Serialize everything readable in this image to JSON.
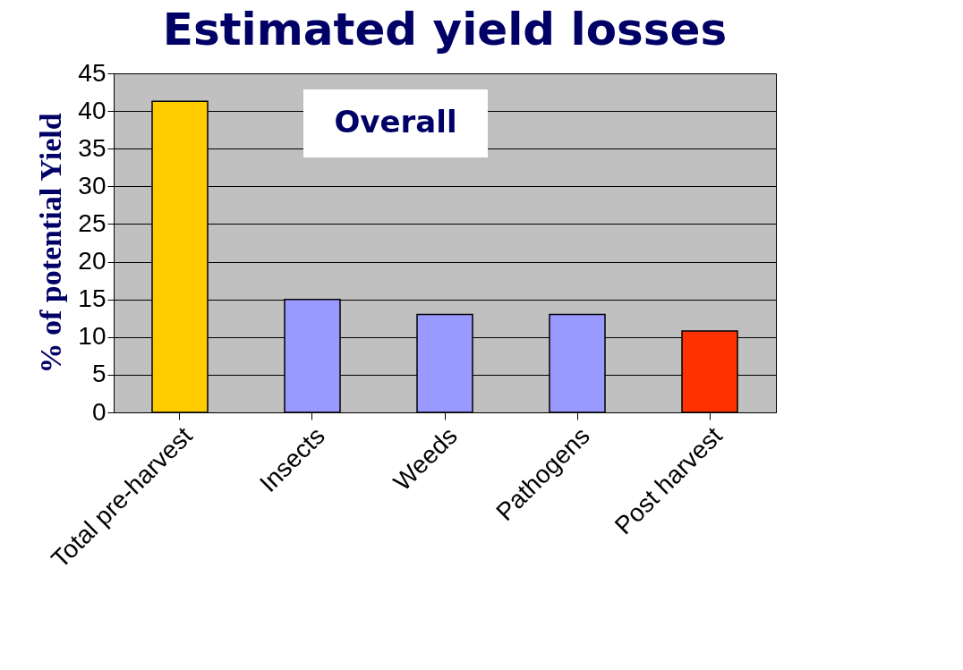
{
  "chart_data": {
    "type": "bar",
    "title": "Estimated yield losses",
    "ylabel": "% of potential Yield",
    "categories": [
      "Total pre-harvest",
      "Insects",
      "Weeds",
      "Pathogens",
      "Post harvest"
    ],
    "values": [
      41.3,
      15,
      13,
      13,
      10.8
    ],
    "colors": [
      "#ffcc00",
      "#9999ff",
      "#9999ff",
      "#9999ff",
      "#ff3300"
    ],
    "ylim": [
      0,
      45
    ],
    "yticks": [
      0,
      5,
      10,
      15,
      20,
      25,
      30,
      35,
      40,
      45
    ],
    "grid": "y",
    "annotations": [
      "Overall"
    ]
  }
}
